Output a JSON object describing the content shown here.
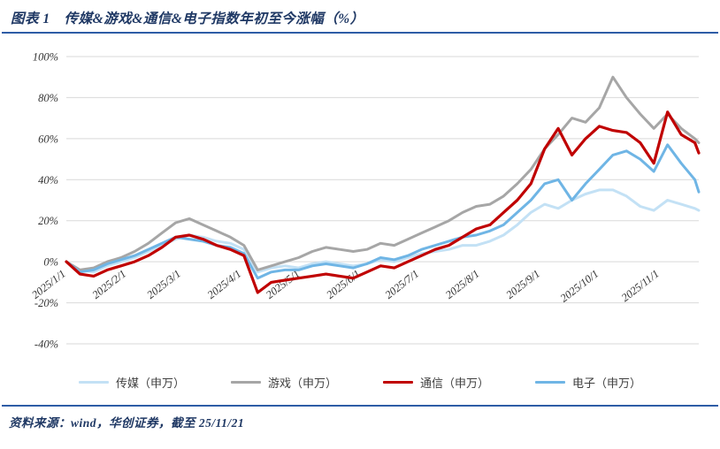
{
  "header": {
    "label": "图表 1",
    "title": "传媒&游戏&通信&电子指数年初至今涨幅（%）"
  },
  "footer": {
    "source": "资料来源：wind，华创证券，截至 25/11/21"
  },
  "colors": {
    "accent_blue": "#2E5DA6",
    "title_navy": "#1F3864",
    "grid": "#D9D9D9",
    "tick_text": "#333333"
  },
  "chart_data": {
    "type": "line",
    "title": "传媒&游戏&通信&电子指数年初至今涨幅（%）",
    "ylabel": "",
    "xlabel": "",
    "ylim": [
      -40,
      100
    ],
    "y_ticks": [
      100,
      80,
      60,
      40,
      20,
      0,
      -20,
      -40
    ],
    "y_tick_suffix": "%",
    "grid": "horizontal",
    "legend_position": "bottom",
    "x": [
      "2025-01-01",
      "2025-01-08",
      "2025-01-15",
      "2025-01-22",
      "2025-01-29",
      "2025-02-05",
      "2025-02-12",
      "2025-02-19",
      "2025-02-26",
      "2025-03-05",
      "2025-03-12",
      "2025-03-19",
      "2025-03-26",
      "2025-04-02",
      "2025-04-09",
      "2025-04-16",
      "2025-04-23",
      "2025-04-30",
      "2025-05-07",
      "2025-05-14",
      "2025-05-21",
      "2025-05-28",
      "2025-06-04",
      "2025-06-11",
      "2025-06-18",
      "2025-06-25",
      "2025-07-02",
      "2025-07-09",
      "2025-07-16",
      "2025-07-23",
      "2025-07-30",
      "2025-08-06",
      "2025-08-13",
      "2025-08-20",
      "2025-08-27",
      "2025-09-03",
      "2025-09-10",
      "2025-09-17",
      "2025-09-24",
      "2025-10-01",
      "2025-10-08",
      "2025-10-15",
      "2025-10-22",
      "2025-10-29",
      "2025-11-05",
      "2025-11-12",
      "2025-11-19",
      "2025-11-21"
    ],
    "x_ticks": [
      {
        "date": "2025-01-01",
        "label": "2025/1/1"
      },
      {
        "date": "2025-02-01",
        "label": "2025/2/1"
      },
      {
        "date": "2025-03-01",
        "label": "2025/3/1"
      },
      {
        "date": "2025-04-01",
        "label": "2025/4/1"
      },
      {
        "date": "2025-05-01",
        "label": "2025/5/1"
      },
      {
        "date": "2025-06-01",
        "label": "2025/6/1"
      },
      {
        "date": "2025-07-01",
        "label": "2025/7/1"
      },
      {
        "date": "2025-08-01",
        "label": "2025/8/1"
      },
      {
        "date": "2025-09-01",
        "label": "2025/9/1"
      },
      {
        "date": "2025-10-01",
        "label": "2025/10/1"
      },
      {
        "date": "2025-11-01",
        "label": "2025/11/1"
      }
    ],
    "draw_order": [
      0,
      1,
      3,
      2
    ],
    "series": [
      {
        "name": "传媒（申万）",
        "color": "#C3E1F5",
        "width": 3,
        "values": [
          0,
          -4,
          -5,
          -2,
          0,
          2,
          5,
          8,
          11,
          13,
          12,
          10,
          9,
          6,
          -5,
          -3,
          -2,
          -3,
          -1,
          0,
          -1,
          -2,
          -1,
          1,
          0,
          2,
          4,
          5,
          6,
          8,
          8,
          10,
          13,
          18,
          24,
          28,
          26,
          30,
          33,
          35,
          35,
          32,
          27,
          25,
          30,
          28,
          26,
          25
        ]
      },
      {
        "name": "游戏（申万）",
        "color": "#A6A6A6",
        "width": 3,
        "values": [
          0,
          -4,
          -3,
          0,
          2,
          5,
          9,
          14,
          19,
          21,
          18,
          15,
          12,
          8,
          -4,
          -2,
          0,
          2,
          5,
          7,
          6,
          5,
          6,
          9,
          8,
          11,
          14,
          17,
          20,
          24,
          27,
          28,
          32,
          38,
          45,
          55,
          62,
          70,
          68,
          75,
          90,
          80,
          72,
          65,
          72,
          65,
          60,
          58
        ]
      },
      {
        "name": "通信（申万）",
        "color": "#C00000",
        "width": 3.2,
        "values": [
          0,
          -6,
          -7,
          -4,
          -2,
          0,
          3,
          7,
          12,
          13,
          11,
          8,
          6,
          3,
          -15,
          -10,
          -9,
          -8,
          -7,
          -6,
          -7,
          -8,
          -5,
          -2,
          -3,
          0,
          3,
          6,
          8,
          12,
          16,
          18,
          24,
          30,
          38,
          55,
          65,
          52,
          60,
          66,
          64,
          63,
          58,
          48,
          73,
          62,
          58,
          53
        ]
      },
      {
        "name": "电子（申万）",
        "color": "#6FB5E5",
        "width": 3,
        "values": [
          0,
          -5,
          -4,
          -1,
          1,
          3,
          6,
          9,
          12,
          11,
          10,
          8,
          7,
          4,
          -8,
          -5,
          -4,
          -4,
          -2,
          -1,
          -2,
          -3,
          -1,
          2,
          1,
          3,
          6,
          8,
          10,
          12,
          13,
          15,
          18,
          24,
          30,
          38,
          40,
          30,
          38,
          45,
          52,
          54,
          50,
          44,
          57,
          48,
          40,
          34
        ]
      }
    ]
  }
}
